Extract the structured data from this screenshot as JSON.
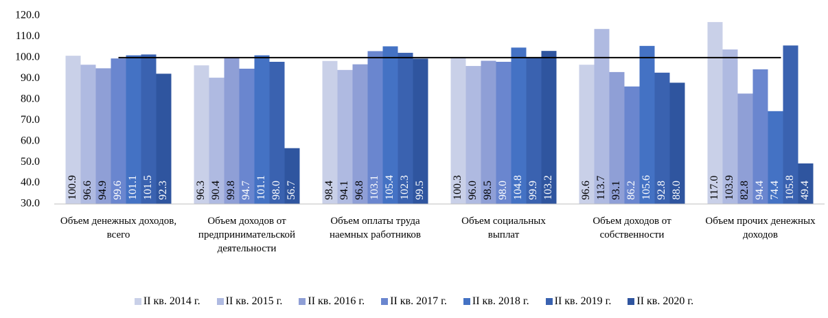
{
  "chart_data": {
    "type": "bar",
    "categories": [
      "Объем денежных доходов, всего",
      "Объем доходов от предпринимательской деятельности",
      "Объем оплаты  труда наемных работников",
      "Объем социальных выплат",
      "Объем доходов от собственности",
      "Объем прочих денежных доходов"
    ],
    "series": [
      {
        "name": "II кв. 2014 г.",
        "color": "#c9d0e8",
        "values": [
          100.9,
          96.3,
          98.4,
          100.3,
          96.6,
          117.0
        ],
        "value_labels": [
          "100.9",
          "96.3",
          "98.4",
          "100.3",
          "96.6",
          "117.0"
        ]
      },
      {
        "name": "II кв. 2015 г.",
        "color": "#afbae1",
        "values": [
          96.6,
          90.4,
          94.1,
          96.0,
          113.7,
          103.9
        ],
        "value_labels": [
          "96.6",
          "90.4",
          "94.1",
          "96.0",
          "113.7",
          "103.9"
        ]
      },
      {
        "name": "II кв. 2016 г.",
        "color": "#8f9fd6",
        "values": [
          94.9,
          99.8,
          96.8,
          98.5,
          93.1,
          82.8
        ],
        "value_labels": [
          "94.9",
          "99.8",
          "96.8",
          "98.5",
          "93.1",
          "82.8"
        ]
      },
      {
        "name": "II кв. 2017 г.",
        "color": "#6a86cf",
        "values": [
          99.6,
          94.7,
          103.1,
          98.0,
          86.2,
          94.4
        ],
        "value_labels": [
          "99.6",
          "94.7",
          "103.1",
          "98.0",
          "86.2",
          "94.4"
        ]
      },
      {
        "name": "II кв. 2018 г.",
        "color": "#4472c4",
        "values": [
          101.1,
          101.1,
          105.4,
          104.8,
          105.6,
          74.4
        ],
        "value_labels": [
          "101.1",
          "101.1",
          "105.4",
          "104.8",
          "105.6",
          "74.4"
        ]
      },
      {
        "name": "II кв. 2019 г.",
        "color": "#3a62b0",
        "values": [
          101.5,
          98.0,
          102.3,
          99.9,
          92.8,
          105.8
        ],
        "value_labels": [
          "101.5",
          "98.0",
          "102.3",
          "99.9",
          "92.8",
          "105.8"
        ]
      },
      {
        "name": "II кв. 2020 г.",
        "color": "#2f559f",
        "values": [
          92.3,
          56.7,
          99.5,
          103.2,
          88.0,
          49.4
        ],
        "value_labels": [
          "92.3",
          "56.7",
          "99.5",
          "103.2",
          "88.0",
          "49.4"
        ]
      }
    ],
    "reference_line": 100,
    "ylim": [
      30,
      120
    ],
    "yticks": [
      {
        "value": 30,
        "label": "30.0"
      },
      {
        "value": 40,
        "label": "40.0"
      },
      {
        "value": 50,
        "label": "50.0"
      },
      {
        "value": 60,
        "label": "60.0"
      },
      {
        "value": 70,
        "label": "70.0"
      },
      {
        "value": 80,
        "label": "80.0"
      },
      {
        "value": 90,
        "label": "90.0"
      },
      {
        "value": 100,
        "label": "100.0"
      },
      {
        "value": 110,
        "label": "110.0"
      },
      {
        "value": 120,
        "label": "120.0"
      }
    ],
    "grid": false
  }
}
